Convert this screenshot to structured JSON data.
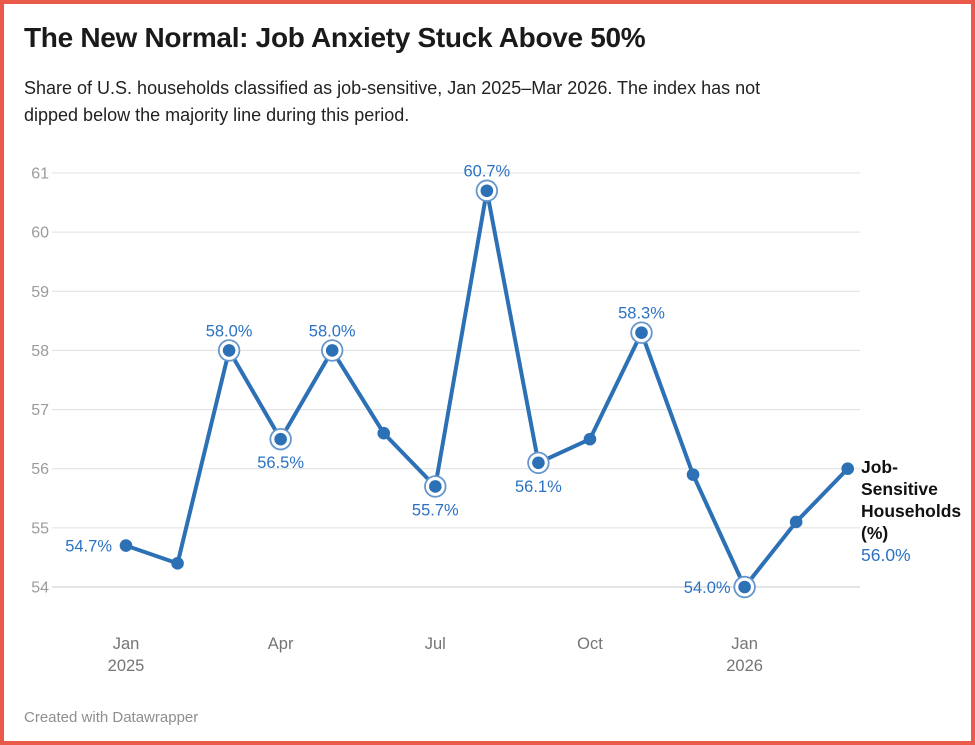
{
  "header": {
    "title": "The New Normal: Job Anxiety Stuck Above 50%",
    "subtitle_lines": [
      "Share of U.S. households classified as job-sensitive, Jan 2025–Mar 2026. The index has not",
      "dipped below the majority line during this period."
    ]
  },
  "legend": {
    "label": "Job-Sensitive Households (%)",
    "value": "56.0%"
  },
  "footer": {
    "credit": "Created with Datawrapper"
  },
  "colors": {
    "line": "#2c70b5",
    "point_label": "#2b72c4",
    "ring": "#6596cc",
    "grid": "#e0e0e0",
    "grid_baseline": "#c9c9c9",
    "y_tick": "#9b9b9b",
    "x_tick": "#757575",
    "frame_border": "#ea5a4b",
    "legend_value": "#2b72c4"
  },
  "chart_data": {
    "type": "line",
    "title": "The New Normal: Job Anxiety Stuck Above 50%",
    "x": [
      "Jan 2025",
      "Feb 2025",
      "Mar 2025",
      "Apr 2025",
      "May 2025",
      "Jun 2025",
      "Jul 2025",
      "Aug 2025",
      "Sep 2025",
      "Oct 2025",
      "Nov 2025",
      "Dec 2025",
      "Jan 2026",
      "Feb 2026",
      "Mar 2026"
    ],
    "series": [
      {
        "name": "Job-Sensitive Households (%)",
        "values": [
          54.7,
          54.4,
          58.0,
          56.5,
          58.0,
          56.6,
          55.7,
          60.7,
          56.1,
          56.5,
          58.3,
          55.9,
          54.0,
          55.1,
          56.0
        ]
      }
    ],
    "ylim": [
      54,
      61
    ],
    "y_ticks": [
      54,
      55,
      56,
      57,
      58,
      59,
      60,
      61
    ],
    "x_ticks": [
      {
        "index": 0,
        "lines": [
          "Jan",
          "2025"
        ]
      },
      {
        "index": 3,
        "lines": [
          "Apr"
        ]
      },
      {
        "index": 6,
        "lines": [
          "Jul"
        ]
      },
      {
        "index": 9,
        "lines": [
          "Oct"
        ]
      },
      {
        "index": 12,
        "lines": [
          "Jan",
          "2026"
        ]
      }
    ],
    "point_labels": [
      {
        "index": 0,
        "text": "54.7%",
        "position": "left"
      },
      {
        "index": 2,
        "text": "58.0%",
        "position": "above"
      },
      {
        "index": 3,
        "text": "56.5%",
        "position": "below"
      },
      {
        "index": 4,
        "text": "58.0%",
        "position": "above"
      },
      {
        "index": 6,
        "text": "55.7%",
        "position": "below"
      },
      {
        "index": 7,
        "text": "60.7%",
        "position": "above"
      },
      {
        "index": 8,
        "text": "56.1%",
        "position": "below"
      },
      {
        "index": 10,
        "text": "58.3%",
        "position": "above"
      },
      {
        "index": 12,
        "text": "54.0%",
        "position": "left"
      }
    ],
    "ringed_point_indices": [
      2,
      3,
      4,
      6,
      7,
      8,
      10,
      12
    ],
    "grid": true,
    "legend_position": "right-of-last-point"
  }
}
